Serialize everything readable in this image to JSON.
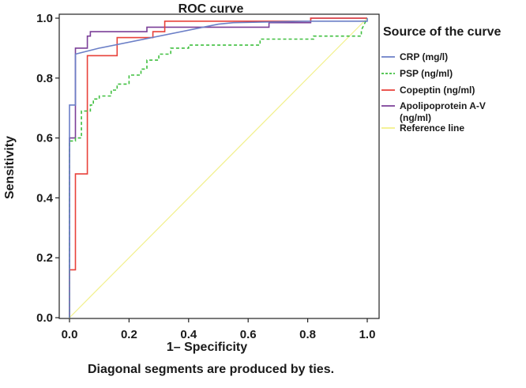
{
  "chart_data": {
    "type": "line",
    "title": "ROC curve",
    "xlabel": "1– Specificity",
    "ylabel": "Sensitivity",
    "footnote": "Diagonal segments are produced by ties.",
    "xlim": [
      0,
      1
    ],
    "ylim": [
      0,
      1
    ],
    "xticks": [
      "0.0",
      "0.2",
      "0.4",
      "0.6",
      "0.8",
      "1.0"
    ],
    "yticks": [
      "0.0",
      "0.2",
      "0.4",
      "0.6",
      "0.8",
      "1.0"
    ],
    "legend_title": "Source of the curve",
    "legend_position": "right",
    "series": [
      {
        "name": "CRP (mg/l)",
        "color": "#6b7fc7",
        "dash": "solid",
        "x": [
          0,
          0,
          0.02,
          0.02,
          0.1,
          0.5,
          0.55,
          0.8,
          1.0,
          1.0
        ],
        "y": [
          0,
          0.71,
          0.71,
          0.88,
          0.9,
          0.98,
          0.985,
          0.99,
          0.99,
          1.0
        ]
      },
      {
        "name": "PSP (ng/ml)",
        "color": "#3fbf3f",
        "dash": "dashed",
        "x": [
          0,
          0,
          0.02,
          0.02,
          0.04,
          0.04,
          0.07,
          0.07,
          0.08,
          0.08,
          0.1,
          0.1,
          0.14,
          0.14,
          0.16,
          0.16,
          0.2,
          0.2,
          0.24,
          0.24,
          0.26,
          0.26,
          0.3,
          0.3,
          0.34,
          0.34,
          0.4,
          0.4,
          0.64,
          0.64,
          0.82,
          0.82,
          0.98,
          0.98,
          1.0
        ],
        "y": [
          0,
          0.59,
          0.59,
          0.6,
          0.6,
          0.69,
          0.69,
          0.71,
          0.71,
          0.73,
          0.73,
          0.74,
          0.74,
          0.76,
          0.76,
          0.78,
          0.78,
          0.81,
          0.81,
          0.83,
          0.83,
          0.86,
          0.86,
          0.88,
          0.88,
          0.9,
          0.9,
          0.91,
          0.91,
          0.93,
          0.93,
          0.94,
          0.94,
          0.96,
          1.0
        ]
      },
      {
        "name": "Copeptin (ng/ml)",
        "color": "#e8413a",
        "dash": "solid",
        "x": [
          0,
          0,
          0.02,
          0.02,
          0.06,
          0.06,
          0.09,
          0.09,
          0.16,
          0.16,
          0.28,
          0.28,
          0.32,
          0.32,
          0.81,
          0.81,
          1.0
        ],
        "y": [
          0,
          0.16,
          0.16,
          0.48,
          0.48,
          0.875,
          0.875,
          0.875,
          0.875,
          0.935,
          0.935,
          0.955,
          0.955,
          0.99,
          0.99,
          1.0,
          1.0
        ]
      },
      {
        "name": "Apolipoprotein A-V (ng/ml)",
        "color": "#7b3f98",
        "dash": "solid",
        "x": [
          0,
          0,
          0.005,
          0.005,
          0.02,
          0.02,
          0.06,
          0.06,
          0.07,
          0.07,
          0.26,
          0.26,
          0.31,
          0.31,
          0.67,
          0.67,
          0.81,
          0.81,
          1.0
        ],
        "y": [
          0,
          0.6,
          0.6,
          0.6,
          0.6,
          0.9,
          0.9,
          0.94,
          0.94,
          0.955,
          0.955,
          0.97,
          0.97,
          0.97,
          0.97,
          0.985,
          0.985,
          1.0,
          1.0
        ]
      },
      {
        "name": "Reference line",
        "color": "#f2f08a",
        "dash": "solid",
        "x": [
          0,
          1
        ],
        "y": [
          0,
          1
        ]
      }
    ]
  }
}
